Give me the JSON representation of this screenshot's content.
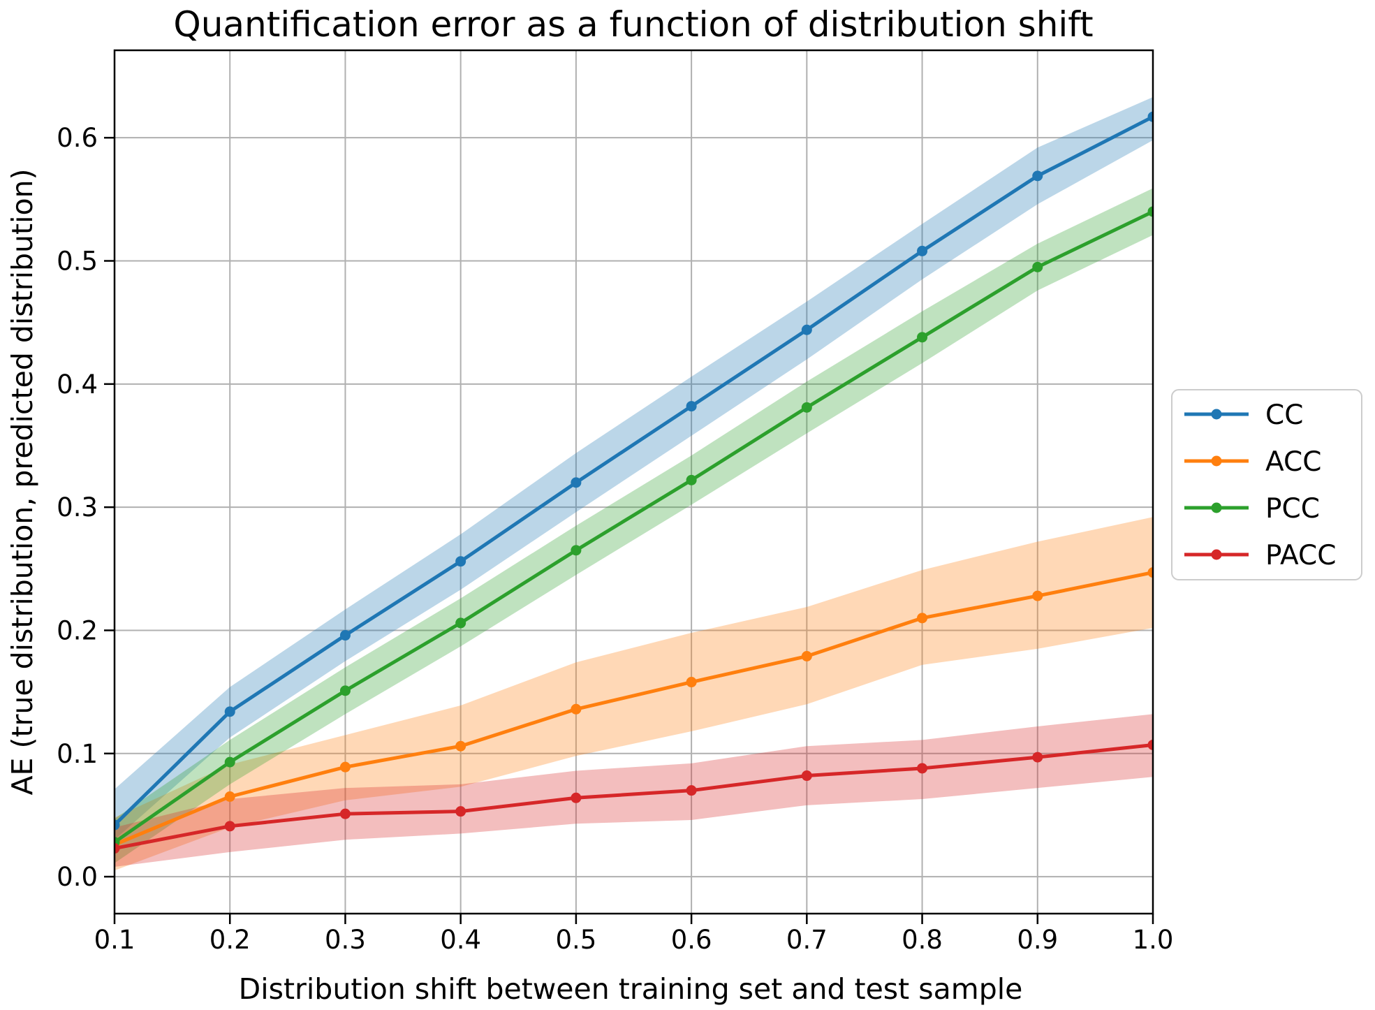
{
  "chart_data": {
    "type": "line",
    "title": "Quantification error as a function of distribution shift",
    "xlabel": "Distribution shift between training set and test sample",
    "ylabel": "AE (true distribution, predicted distribution)",
    "x": [
      0.1,
      0.2,
      0.3,
      0.4,
      0.5,
      0.6,
      0.7,
      0.8,
      0.9,
      1.0
    ],
    "x_tick_labels": [
      "0.1",
      "0.2",
      "0.3",
      "0.4",
      "0.5",
      "0.6",
      "0.7",
      "0.8",
      "0.9",
      "1.0"
    ],
    "y_ticks": [
      0.0,
      0.1,
      0.2,
      0.3,
      0.4,
      0.5,
      0.6
    ],
    "y_tick_labels": [
      "0.0",
      "0.1",
      "0.2",
      "0.3",
      "0.4",
      "0.5",
      "0.6"
    ],
    "xlim": [
      0.1,
      1.0
    ],
    "ylim": [
      -0.03,
      0.671
    ],
    "grid": true,
    "grid_color": "#b0b0b0",
    "band_alpha": 0.3,
    "legend_position": "outside-right",
    "series": [
      {
        "name": "CC",
        "color": "#1f77b4",
        "values": [
          0.042,
          0.134,
          0.196,
          0.256,
          0.32,
          0.382,
          0.444,
          0.508,
          0.569,
          0.617
        ],
        "band_lower": [
          0.03,
          0.113,
          0.175,
          0.233,
          0.296,
          0.358,
          0.42,
          0.485,
          0.546,
          0.598
        ],
        "band_upper": [
          0.071,
          0.154,
          0.217,
          0.278,
          0.344,
          0.406,
          0.467,
          0.53,
          0.592,
          0.633
        ]
      },
      {
        "name": "ACC",
        "color": "#ff7f0e",
        "values": [
          0.026,
          0.065,
          0.089,
          0.106,
          0.136,
          0.158,
          0.179,
          0.21,
          0.228,
          0.247
        ],
        "band_lower": [
          0.005,
          0.04,
          0.062,
          0.073,
          0.098,
          0.118,
          0.14,
          0.172,
          0.185,
          0.202
        ],
        "band_upper": [
          0.048,
          0.091,
          0.115,
          0.139,
          0.174,
          0.198,
          0.219,
          0.249,
          0.272,
          0.292
        ]
      },
      {
        "name": "PCC",
        "color": "#2ca02c",
        "values": [
          0.028,
          0.093,
          0.151,
          0.206,
          0.265,
          0.322,
          0.381,
          0.438,
          0.495,
          0.54
        ],
        "band_lower": [
          0.011,
          0.075,
          0.132,
          0.187,
          0.245,
          0.302,
          0.36,
          0.417,
          0.476,
          0.521
        ],
        "band_upper": [
          0.047,
          0.111,
          0.17,
          0.226,
          0.285,
          0.342,
          0.402,
          0.459,
          0.514,
          0.559
        ]
      },
      {
        "name": "PACC",
        "color": "#d62728",
        "values": [
          0.023,
          0.041,
          0.051,
          0.053,
          0.064,
          0.07,
          0.082,
          0.088,
          0.097,
          0.107
        ],
        "band_lower": [
          0.008,
          0.02,
          0.03,
          0.035,
          0.043,
          0.046,
          0.058,
          0.063,
          0.072,
          0.081
        ],
        "band_upper": [
          0.04,
          0.063,
          0.072,
          0.075,
          0.086,
          0.092,
          0.106,
          0.111,
          0.122,
          0.132
        ]
      }
    ]
  }
}
